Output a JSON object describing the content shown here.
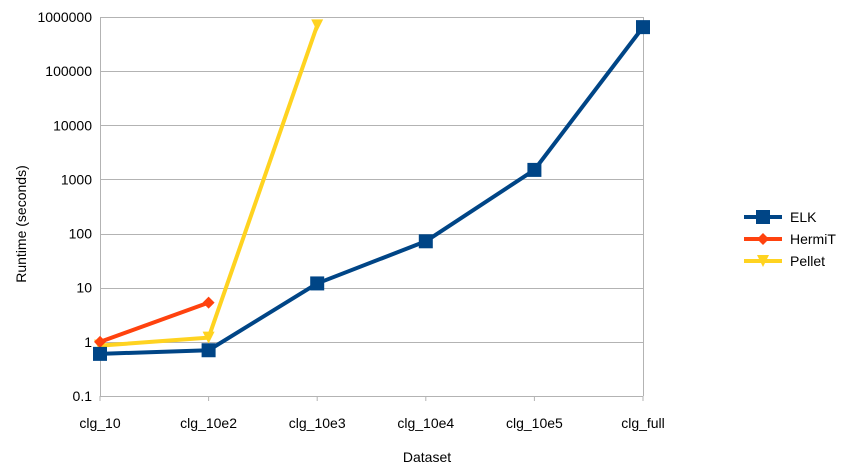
{
  "chart_data": {
    "type": "line",
    "title": "",
    "xlabel": "Dataset",
    "ylabel": "Runtime (seconds)",
    "y_scale": "log",
    "ylim": [
      0.1,
      1000000
    ],
    "y_ticks": [
      0.1,
      1,
      10,
      100,
      1000,
      10000,
      100000,
      1000000
    ],
    "y_tick_labels": [
      "0.1",
      "1",
      "10",
      "100",
      "1000",
      "10000",
      "100000",
      "1000000"
    ],
    "categories": [
      "clg_10",
      "clg_10e2",
      "clg_10e3",
      "clg_10e4",
      "clg_10e5",
      "clg_full"
    ],
    "grid": "horizontal",
    "legend_position": "right",
    "series": [
      {
        "name": "ELK",
        "color": "#004586",
        "marker": "square",
        "values": [
          0.6,
          0.7,
          12,
          72,
          1500,
          650000
        ]
      },
      {
        "name": "HermiT",
        "color": "#FF420E",
        "marker": "diamond",
        "values": [
          1.0,
          5.3,
          null,
          null,
          null,
          null
        ]
      },
      {
        "name": "Pellet",
        "color": "#FFD320",
        "marker": "triangle-down",
        "values": [
          0.85,
          1.2,
          700000,
          null,
          null,
          null
        ]
      }
    ]
  }
}
